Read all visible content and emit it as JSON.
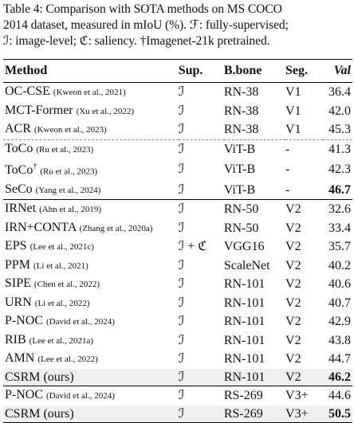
{
  "caption": {
    "line1": "Table 4: Comparison with SOTA methods on MS COCO",
    "line2": "2014 dataset, measured in mIoU (%). ℱ: fully-supervised;",
    "line3": "ℐ: image-level; ℭ: saliency. †Imagenet-21k pretrained."
  },
  "headers": {
    "method": "Method",
    "sup": "Sup.",
    "backbone": "B.bone",
    "seg": "Seg.",
    "val": "Val"
  },
  "groups": [
    {
      "rows": [
        {
          "method": "OC-CSE",
          "cite": "(Kweon et al., 2021)",
          "sup": "ℐ",
          "backbone": "RN-38",
          "seg": "V1",
          "val": "36.4"
        },
        {
          "method": "MCT-Former",
          "cite": "(Xu et al., 2022)",
          "sup": "ℐ",
          "backbone": "RN-38",
          "seg": "V1",
          "val": "42.0"
        },
        {
          "method": "ACR",
          "cite": "(Kweon et al., 2023)",
          "sup": "ℐ",
          "backbone": "RN-38",
          "seg": "V1",
          "val": "45.3"
        },
        {
          "method": "ToCo",
          "cite": "(Ru et al., 2023)",
          "sup": "ℐ",
          "backbone": "ViT-B",
          "seg": "-",
          "val": "41.3"
        },
        {
          "method": "ToCo",
          "dagger": "†",
          "cite": "(Ru et al., 2023)",
          "sup": "ℐ",
          "backbone": "ViT-B",
          "seg": "-",
          "val": "42.3"
        },
        {
          "method": "SeCo",
          "cite": "(Yang et al., 2024)",
          "sup": "ℐ",
          "backbone": "ViT-B",
          "seg": "-",
          "val": "46.7",
          "bold": true
        }
      ]
    },
    {
      "rows": [
        {
          "method": "IRNet",
          "cite": "(Ahn et al., 2019)",
          "sup": "ℐ",
          "backbone": "RN-50",
          "seg": "V2",
          "val": "32.6"
        },
        {
          "method": "IRN+CONTA",
          "cite": "(Zhang et al., 2020a)",
          "sup": "ℐ",
          "backbone": "RN-50",
          "seg": "V2",
          "val": "33.4"
        },
        {
          "method": "EPS",
          "cite": "(Lee et al., 2021c)",
          "sup": "ℐ + ℭ",
          "backbone": "VGG16",
          "seg": "V2",
          "val": "35.7"
        },
        {
          "method": "PPM",
          "cite": "(Li et al., 2021)",
          "sup": "ℐ",
          "backbone": "ScaleNet",
          "seg": "V2",
          "val": "40.2"
        },
        {
          "method": "SIPE",
          "cite": "(Chen et al., 2022)",
          "sup": "ℐ",
          "backbone": "RN-101",
          "seg": "V2",
          "val": "40.6"
        },
        {
          "method": "URN",
          "cite": "(Li et al., 2022)",
          "sup": "ℐ",
          "backbone": "RN-101",
          "seg": "V2",
          "val": "40.7"
        },
        {
          "method": "P-NOC",
          "cite": "(David et al., 2024)",
          "sup": "ℐ",
          "backbone": "RN-101",
          "seg": "V2",
          "val": "42.9"
        },
        {
          "method": "RIB",
          "cite": "(Lee et al., 2021a)",
          "sup": "ℐ",
          "backbone": "RN-101",
          "seg": "V2",
          "val": "43.8"
        },
        {
          "method": "AMN",
          "cite": "(Lee et al., 2022)",
          "sup": "ℐ",
          "backbone": "RN-101",
          "seg": "V2",
          "val": "44.7"
        },
        {
          "method": "CSRM (ours)",
          "cite": "",
          "sup": "ℐ",
          "backbone": "RN-101",
          "seg": "V2",
          "val": "46.2",
          "bold": true,
          "highlight": true
        }
      ]
    },
    {
      "rows": [
        {
          "method": "P-NOC",
          "cite": "(David et al., 2024)",
          "sup": "ℐ",
          "backbone": "RS-269",
          "seg": "V3+",
          "val": "44.6"
        },
        {
          "method": "CSRM (ours)",
          "cite": "",
          "sup": "ℐ",
          "backbone": "RS-269",
          "seg": "V3+",
          "val": "50.5",
          "bold": true,
          "highlight": true
        }
      ]
    }
  ]
}
